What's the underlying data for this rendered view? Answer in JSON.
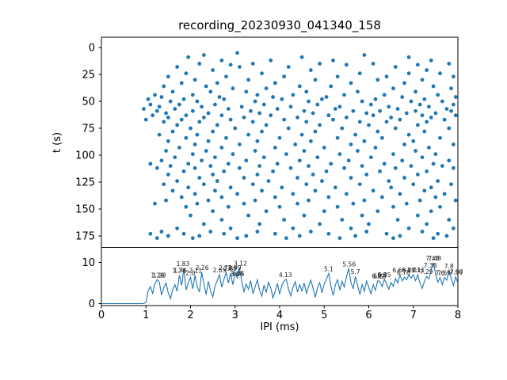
{
  "figure": {
    "title": "recording_20230930_041340_158",
    "background": "#ffffff",
    "accent_color": "#1f77b4",
    "axis_color": "#000000"
  },
  "chart_data": [
    {
      "type": "scatter",
      "title": "recording_20230930_041340_158",
      "xlabel": "IPI (ms)",
      "ylabel": "t (s)",
      "xlim": [
        0,
        8
      ],
      "ylim_inverted": [
        0,
        185
      ],
      "yticks": [
        0,
        25,
        50,
        75,
        100,
        125,
        150,
        175
      ],
      "xticks": [
        0,
        1,
        2,
        3,
        4,
        5,
        6,
        7,
        8
      ],
      "grid": false,
      "legend": "none",
      "marker_color": "#1f77b4",
      "rows_t_then_x": [
        [
          5,
          [
            3.05
          ]
        ],
        [
          7,
          [
            2.3,
            5.9
          ]
        ],
        [
          9,
          [
            1.95,
            4.5,
            6.9
          ]
        ],
        [
          12,
          [
            2.7,
            3.8,
            5.2,
            7.4
          ]
        ],
        [
          15,
          [
            2.2,
            3.4,
            4.9,
            6.1,
            7.8
          ]
        ],
        [
          16,
          [
            2.9,
            5.5,
            7.1
          ]
        ],
        [
          18,
          [
            1.7,
            3.1,
            4.2,
            6.6
          ]
        ],
        [
          21,
          [
            2.5,
            4.7,
            7.3
          ]
        ],
        [
          24,
          [
            1.9,
            3.6,
            5.8,
            6.9,
            7.6
          ]
        ],
        [
          27,
          [
            1.5,
            2.8,
            4.1,
            5.3,
            6.4,
            7.9
          ]
        ],
        [
          30,
          [
            2.1,
            3.3,
            4.8,
            6.2,
            7.2
          ]
        ],
        [
          33,
          [
            1.8,
            2.6,
            3.9,
            5.6,
            6.8
          ]
        ],
        [
          36,
          [
            1.4,
            2.35,
            4.45,
            5.15,
            7.45
          ]
        ],
        [
          38,
          [
            2.95,
            3.7,
            6.55,
            7.85
          ]
        ],
        [
          41,
          [
            1.6,
            2.45,
            3.25,
            4.6,
            5.75,
            7.05
          ]
        ],
        [
          44,
          [
            1.2,
            2.05,
            3.5,
            4.3,
            5.45,
            6.35,
            7.55
          ]
        ],
        [
          46,
          [
            1.35,
            2.65,
            3.85,
            5.05,
            6.75,
            7.95
          ]
        ],
        [
          48,
          [
            1.05,
            1.85,
            2.75,
            4.05,
            4.95,
            6.15,
            7.25
          ]
        ],
        [
          50,
          [
            1.55,
            2.15,
            3.45,
            4.65,
            5.85,
            6.95,
            7.65
          ]
        ],
        [
          53,
          [
            1.1,
            1.75,
            2.55,
            3.65,
            4.85,
            6.05,
            7.15,
            7.9
          ]
        ],
        [
          55,
          [
            1.3,
            2.25,
            3.15,
            4.25,
            5.35,
            6.45,
            7.35
          ]
        ],
        [
          57,
          [
            0.95,
            1.65,
            2.85,
            3.95,
            5.25,
            6.65,
            7.75
          ]
        ],
        [
          59,
          [
            1.25,
            2.05,
            3.35,
            4.55,
            5.65,
            6.25,
            7.05,
            7.85
          ]
        ],
        [
          61,
          [
            1.45,
            2.4,
            3.55,
            4.75,
            5.95,
            6.85,
            7.5
          ]
        ],
        [
          63,
          [
            1.15,
            1.9,
            2.7,
            3.8,
            5.1,
            6.1,
            7.2,
            7.95
          ]
        ],
        [
          65,
          [
            1.5,
            2.3,
            3.2,
            4.4,
            5.5,
            6.5,
            7.4
          ]
        ],
        [
          67,
          [
            1.0,
            1.8,
            2.9,
            4.1,
            5.2,
            6.7,
            7.7
          ]
        ],
        [
          69,
          [
            1.4,
            2.2,
            3.4,
            4.6,
            5.8,
            6.4,
            7.3
          ]
        ],
        [
          72,
          [
            1.7,
            2.6,
            3.7,
            4.9,
            6.0,
            7.1
          ]
        ],
        [
          75,
          [
            2.0,
            3.0,
            4.2,
            5.4,
            6.6,
            7.8
          ]
        ],
        [
          78,
          [
            1.6,
            2.5,
            3.6,
            4.8,
            6.2,
            7.25
          ]
        ],
        [
          81,
          [
            1.3,
            2.15,
            3.3,
            4.5,
            5.7,
            6.9
          ]
        ],
        [
          84,
          [
            1.9,
            2.8,
            4.0,
            5.3,
            6.3,
            7.6
          ]
        ],
        [
          87,
          [
            1.5,
            2.4,
            3.5,
            4.7,
            5.9,
            7.0
          ]
        ],
        [
          90,
          [
            2.1,
            3.1,
            4.35,
            5.6,
            6.8,
            7.9
          ]
        ],
        [
          93,
          [
            1.75,
            2.7,
            3.9,
            5.0,
            6.15,
            7.35
          ]
        ],
        [
          96,
          [
            1.45,
            2.35,
            3.45,
            4.55,
            5.75,
            7.05
          ]
        ],
        [
          99,
          [
            2.05,
            2.95,
            4.15,
            5.35,
            6.55,
            7.5
          ]
        ],
        [
          102,
          [
            1.65,
            2.55,
            3.65,
            4.85,
            6.05,
            7.2
          ]
        ],
        [
          105,
          [
            1.35,
            2.25,
            3.25,
            4.45,
            5.55,
            6.75,
            7.8
          ]
        ],
        [
          108,
          [
            1.1,
            1.95,
            2.85,
            3.95,
            5.15,
            6.35,
            7.45
          ]
        ],
        [
          110,
          [
            1.55,
            2.45,
            3.55,
            4.65,
            5.85,
            6.95,
            7.65
          ]
        ],
        [
          112,
          [
            1.25,
            2.1,
            3.1,
            4.25,
            5.45,
            6.6,
            7.9
          ]
        ],
        [
          115,
          [
            1.85,
            2.75,
            3.85,
            5.05,
            6.25,
            7.3
          ]
        ],
        [
          118,
          [
            1.5,
            2.5,
            3.5,
            4.75,
            5.95,
            7.1
          ]
        ],
        [
          121,
          [
            2.2,
            3.2,
            4.4,
            5.6,
            6.8
          ]
        ],
        [
          124,
          [
            1.7,
            2.6,
            3.75,
            4.95,
            6.45,
            7.55
          ]
        ],
        [
          127,
          [
            1.4,
            2.3,
            3.4,
            4.6,
            5.8,
            7.0,
            7.85
          ]
        ],
        [
          130,
          [
            1.95,
            2.9,
            4.05,
            5.25,
            6.5,
            7.4
          ]
        ],
        [
          133,
          [
            1.6,
            2.55,
            3.6,
            4.8,
            6.1,
            7.25
          ]
        ],
        [
          136,
          [
            2.1,
            3.05,
            4.3,
            5.5,
            6.7,
            7.7
          ]
        ],
        [
          139,
          [
            1.8,
            2.7,
            3.9,
            5.1,
            6.3,
            7.5
          ]
        ],
        [
          142,
          [
            1.45,
            2.4,
            3.45,
            4.65,
            5.9,
            7.15,
            7.95
          ]
        ],
        [
          145,
          [
            1.2,
            2.15,
            3.2,
            4.4,
            5.65,
            6.85
          ]
        ],
        [
          148,
          [
            1.9,
            2.85,
            4.0,
            5.3,
            6.55,
            7.6
          ]
        ],
        [
          152,
          [
            2.5,
            3.7,
            5.0,
            6.2,
            7.4
          ]
        ],
        [
          156,
          [
            2.0,
            3.3,
            4.55,
            5.85,
            7.1
          ]
        ],
        [
          160,
          [
            2.7,
            4.1,
            5.4,
            6.65,
            7.8
          ]
        ],
        [
          164,
          [
            2.3,
            3.55,
            4.9,
            6.0,
            7.3
          ]
        ],
        [
          168,
          [
            1.7,
            2.9,
            4.3,
            5.6,
            6.9,
            7.9
          ]
        ],
        [
          171,
          [
            1.35,
            2.45,
            3.5,
            4.7,
            5.95,
            7.2
          ]
        ],
        [
          173,
          [
            1.1,
            1.85,
            2.75,
            3.9,
            5.1,
            6.4,
            7.55
          ]
        ],
        [
          175,
          [
            1.5,
            2.2,
            3.25,
            4.45,
            5.7,
            6.7,
            7.75
          ]
        ],
        [
          177,
          [
            1.25,
            2.05,
            3.05,
            4.15,
            5.35,
            6.55,
            7.45
          ]
        ]
      ]
    },
    {
      "type": "line",
      "xlabel": "IPI (ms)",
      "xlim": [
        0,
        8
      ],
      "ylim": [
        0,
        14.1
      ],
      "yticks": [
        0,
        10
      ],
      "grid": false,
      "line_color": "#1f77b4",
      "x_start": 0,
      "x_step": 0.05,
      "values": [
        0,
        0,
        0,
        0,
        0,
        0,
        0,
        0,
        0,
        0,
        0,
        0,
        0,
        0,
        0,
        0,
        0,
        0,
        0,
        0,
        0.3,
        3.2,
        4.1,
        2.5,
        4.8,
        5.8,
        5.2,
        2.1,
        3.9,
        5.0,
        2.6,
        1.2,
        3.4,
        4.6,
        3.0,
        6.9,
        4.4,
        8.6,
        3.3,
        5.1,
        6.3,
        3.6,
        6.9,
        4.2,
        2.8,
        7.6,
        4.9,
        2.2,
        5.4,
        3.1,
        1.6,
        4.3,
        5.7,
        7.0,
        4.0,
        5.9,
        7.6,
        5.0,
        7.4,
        4.6,
        7.6,
        6.2,
        8.7,
        5.3,
        2.9,
        4.7,
        3.5,
        5.6,
        2.4,
        4.1,
        5.8,
        3.2,
        1.8,
        4.5,
        2.7,
        5.2,
        3.8,
        1.4,
        3.0,
        4.9,
        2.3,
        4.4,
        5.5,
        5.9,
        3.4,
        1.9,
        4.0,
        5.3,
        2.8,
        4.6,
        3.1,
        5.0,
        2.5,
        4.2,
        5.7,
        3.7,
        1.5,
        3.9,
        5.1,
        2.6,
        4.8,
        6.0,
        7.3,
        4.3,
        2.0,
        4.5,
        5.8,
        3.3,
        5.4,
        4.0,
        6.6,
        8.5,
        5.2,
        3.6,
        6.6,
        4.4,
        2.2,
        4.7,
        3.0,
        5.5,
        3.9,
        2.4,
        4.6,
        3.2,
        5.6,
        5.3,
        4.1,
        5.9,
        4.8,
        3.5,
        5.1,
        4.2,
        6.1,
        5.0,
        7.0,
        5.5,
        6.4,
        5.8,
        7.0,
        6.2,
        7.0,
        5.6,
        7.0,
        4.9,
        3.7,
        5.4,
        6.6,
        6.0,
        8.2,
        9.9,
        7.1,
        5.2,
        6.3,
        4.6,
        6.3,
        5.7,
        8.0,
        6.1,
        4.4,
        6.5,
        5.0
      ],
      "peak_labels": [
        {
          "x": 1.26,
          "h": 5.8,
          "text": "1.26"
        },
        {
          "x": 1.3,
          "h": 5.8,
          "text": "1.28"
        },
        {
          "x": 1.74,
          "h": 6.9,
          "text": "1.74"
        },
        {
          "x": 1.77,
          "h": 6.9,
          "text": "1.76"
        },
        {
          "x": 1.83,
          "h": 8.6,
          "text": "1.83"
        },
        {
          "x": 2.0,
          "h": 6.3,
          "text": "2.0"
        },
        {
          "x": 2.11,
          "h": 6.9,
          "text": "2.11"
        },
        {
          "x": 2.26,
          "h": 7.6,
          "text": "2.26"
        },
        {
          "x": 2.65,
          "h": 7.0,
          "text": "2.65"
        },
        {
          "x": 2.78,
          "h": 7.6,
          "text": "2.78"
        },
        {
          "x": 2.89,
          "h": 7.4,
          "text": "2.89"
        },
        {
          "x": 2.99,
          "h": 7.6,
          "text": "2.99"
        },
        {
          "x": 3.04,
          "h": 6.2,
          "text": "3.04"
        },
        {
          "x": 3.06,
          "h": 6.2,
          "text": "3.05"
        },
        {
          "x": 3.12,
          "h": 8.7,
          "text": "3.12"
        },
        {
          "x": 4.13,
          "h": 5.9,
          "text": "4.13"
        },
        {
          "x": 5.1,
          "h": 7.3,
          "text": "5.1"
        },
        {
          "x": 5.56,
          "h": 8.5,
          "text": "5.56"
        },
        {
          "x": 5.7,
          "h": 6.6,
          "text": "5.7"
        },
        {
          "x": 6.22,
          "h": 5.6,
          "text": "6.22"
        },
        {
          "x": 6.25,
          "h": 5.6,
          "text": "6.25"
        },
        {
          "x": 6.3,
          "h": 5.9,
          "text": "6.3"
        },
        {
          "x": 6.35,
          "h": 5.9,
          "text": "6.35"
        },
        {
          "x": 6.68,
          "h": 7.0,
          "text": "6.68"
        },
        {
          "x": 6.78,
          "h": 6.4,
          "text": "6.78"
        },
        {
          "x": 6.89,
          "h": 7.0,
          "text": "6.89"
        },
        {
          "x": 7.01,
          "h": 7.0,
          "text": "7.01"
        },
        {
          "x": 7.11,
          "h": 7.0,
          "text": "7.11"
        },
        {
          "x": 7.29,
          "h": 6.6,
          "text": "7.29"
        },
        {
          "x": 7.38,
          "h": 8.2,
          "text": "7.38"
        },
        {
          "x": 7.43,
          "h": 9.9,
          "text": "7.43"
        },
        {
          "x": 7.48,
          "h": 9.9,
          "text": "7.48"
        },
        {
          "x": 7.6,
          "h": 6.3,
          "text": "7.6"
        },
        {
          "x": 7.69,
          "h": 6.3,
          "text": "7.69"
        },
        {
          "x": 7.8,
          "h": 8.0,
          "text": "7.8"
        },
        {
          "x": 7.96,
          "h": 6.5,
          "text": "7.96"
        },
        {
          "x": 7.97,
          "h": 6.5,
          "text": "7.97"
        }
      ]
    }
  ],
  "labels": {
    "title": "recording_20230930_041340_158",
    "top_ylabel": "t (s)",
    "xlabel": "IPI (ms)"
  }
}
